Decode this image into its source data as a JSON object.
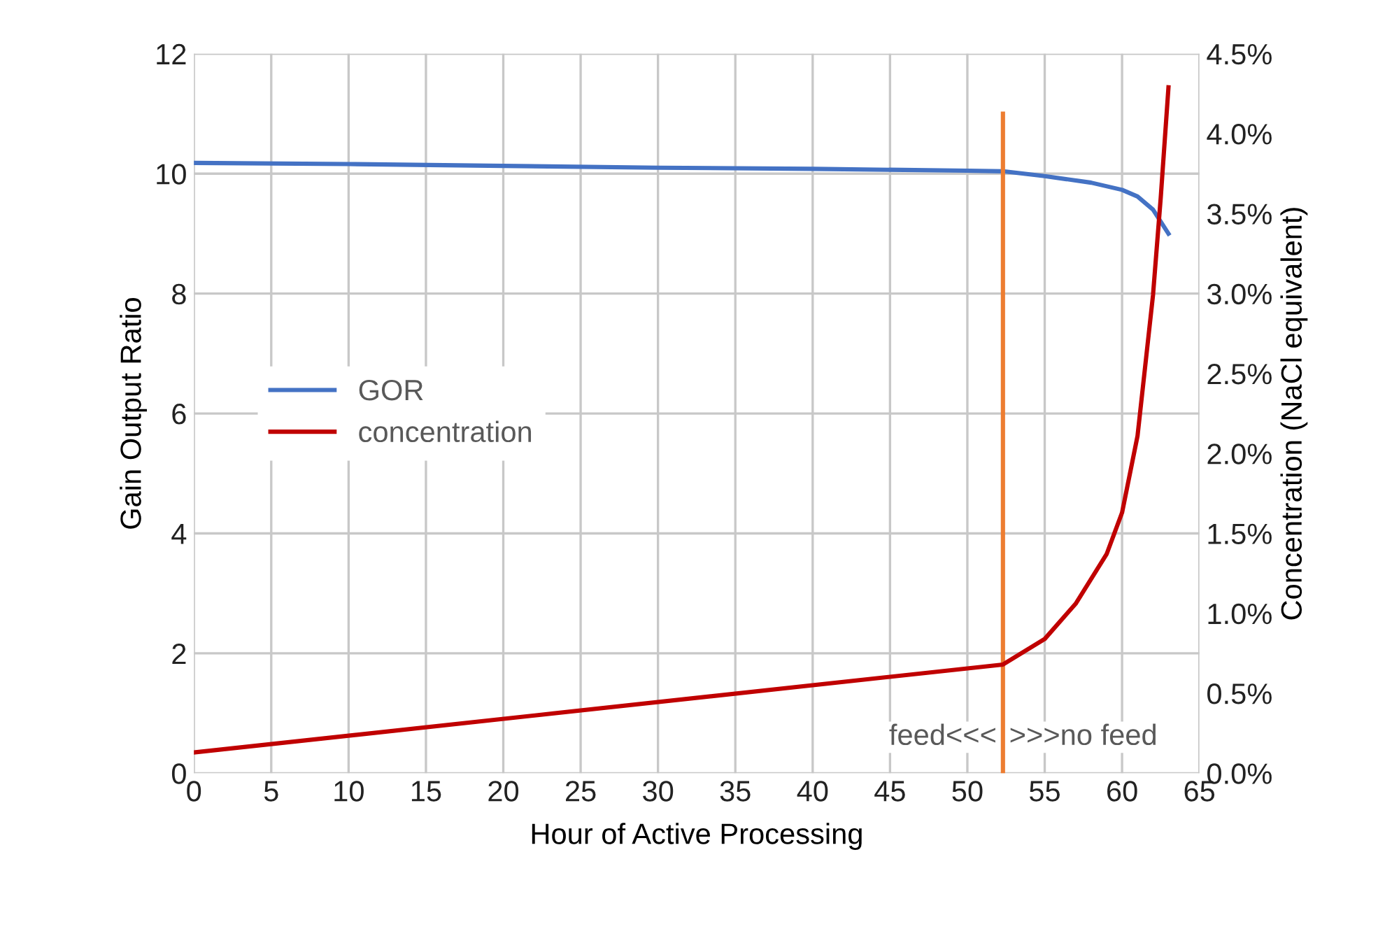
{
  "chart_data": {
    "type": "line",
    "xlabel": "Hour of Active Processing",
    "ylabel": "Gain Output Ratio",
    "y2label": "Concentration (NaCl equivalent)",
    "xlim": [
      0,
      65
    ],
    "xticks": [
      0,
      5,
      10,
      15,
      20,
      25,
      30,
      35,
      40,
      45,
      50,
      55,
      60,
      65
    ],
    "ylim": [
      0,
      12
    ],
    "yticks": [
      0,
      2,
      4,
      6,
      8,
      10,
      12
    ],
    "y2lim": [
      0,
      4.5
    ],
    "y2ticks": [
      {
        "value": 0,
        "label": "0.0%"
      },
      {
        "value": 0.5,
        "label": "0.5%"
      },
      {
        "value": 1,
        "label": "1.0%"
      },
      {
        "value": 1.5,
        "label": "1.5%"
      },
      {
        "value": 2,
        "label": "2.0%"
      },
      {
        "value": 2.5,
        "label": "2.5%"
      },
      {
        "value": 3,
        "label": "3.0%"
      },
      {
        "value": 3.5,
        "label": "3.5%"
      },
      {
        "value": 4,
        "label": "4.0%"
      },
      {
        "value": 4.5,
        "label": "4.5%"
      }
    ],
    "grid": true,
    "legend": "left",
    "marker": "none",
    "line_style": "solid",
    "series": [
      {
        "name": "GOR",
        "color": "#4472c4",
        "x": [
          0,
          10,
          20,
          30,
          40,
          50,
          52.3,
          55,
          58,
          60,
          61,
          62,
          63
        ],
        "values": [
          10.18,
          10.16,
          10.13,
          10.1,
          10.08,
          10.05,
          10.04,
          9.96,
          9.85,
          9.73,
          9.62,
          9.4,
          9.0
        ]
      },
      {
        "name": "concentration",
        "color": "#c00000",
        "axis": "y2",
        "x": [
          0,
          52.3,
          55,
          57,
          59,
          60,
          61,
          62,
          62.5,
          63
        ],
        "values": [
          0.13,
          0.68,
          0.84,
          1.06,
          1.37,
          1.63,
          2.11,
          2.99,
          3.6,
          4.29
        ]
      },
      {
        "color": "#ed7d31",
        "x": [
          52.3,
          52.3
        ],
        "values": [
          0,
          11
        ]
      }
    ],
    "annotations": [
      "feed<<<",
      ">>>no feed"
    ]
  }
}
